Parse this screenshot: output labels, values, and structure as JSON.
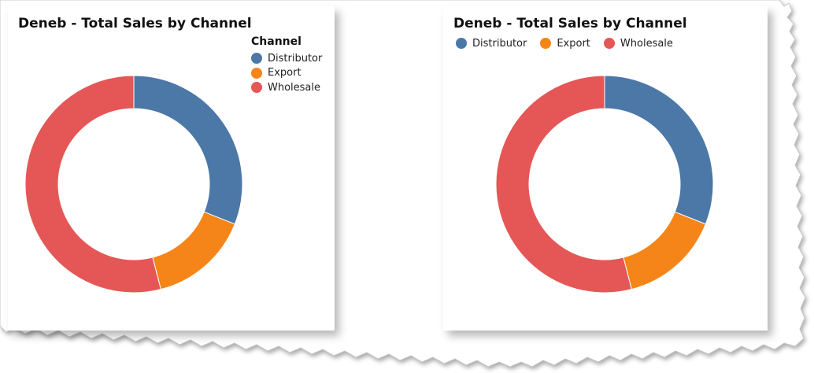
{
  "chart_data": [
    {
      "type": "pie",
      "title": "Deneb - Total Sales by Channel",
      "legend_title": "Channel",
      "legend_placement": "top-right",
      "categories": [
        "Distributor",
        "Export",
        "Wholesale"
      ],
      "values": [
        31,
        15,
        54
      ],
      "colors": [
        "#4C78A8",
        "#F58518",
        "#E45756"
      ],
      "donut": true
    },
    {
      "type": "pie",
      "title": "Deneb - Total Sales by Channel",
      "legend_placement": "top",
      "categories": [
        "Distributor",
        "Export",
        "Wholesale"
      ],
      "values": [
        31,
        15,
        54
      ],
      "colors": [
        "#4C78A8",
        "#F58518",
        "#E45756"
      ],
      "donut": true
    }
  ]
}
